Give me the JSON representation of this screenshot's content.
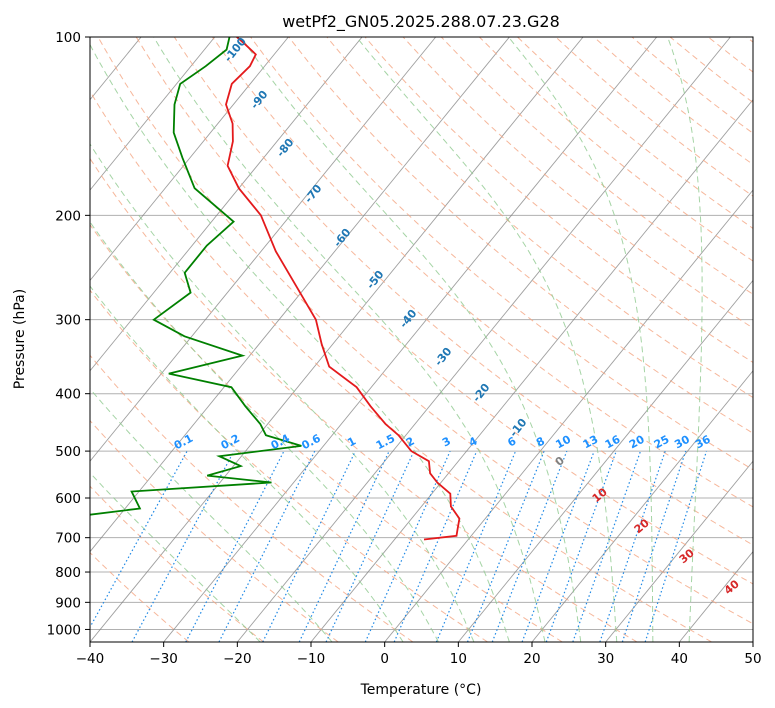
{
  "chart_data": {
    "type": "skew-t log-p diagram",
    "title": "wetPf2_GN05.2025.288.07.23.G28",
    "xlabel": "Temperature (°C)",
    "ylabel": "Pressure (hPa)",
    "xlim": [
      -40,
      50
    ],
    "ylim": [
      1050,
      100
    ],
    "y_scale": "log",
    "x_ticks": [
      -40,
      -30,
      -20,
      -10,
      0,
      10,
      20,
      30,
      40,
      50
    ],
    "x_tick_labels": [
      "−40",
      "−30",
      "−20",
      "−10",
      "0",
      "10",
      "20",
      "30",
      "40",
      "50"
    ],
    "y_ticks": [
      1000,
      900,
      800,
      700,
      600,
      500,
      400,
      300,
      200,
      100
    ],
    "y_tick_labels": [
      "1000",
      "900",
      "800",
      "700",
      "600",
      "500",
      "400",
      "300",
      "200",
      "100"
    ],
    "grid": true,
    "colors": {
      "temperature": "#e41a1c",
      "dewpoint": "#008000",
      "isotherm": "#808080",
      "dry_adiabat": "#f4a582",
      "moist_adiabat": "#8fc98f",
      "mixing_ratio": "#1e88e5",
      "isotherm_label": "#1f77b4",
      "dry_adiabat_label": "#d62728"
    },
    "isotherm_labels": [
      "-100",
      "-90",
      "-80",
      "-70",
      "-60",
      "-50",
      "-40",
      "-30",
      "-20",
      "-10"
    ],
    "mixing_ratio_labels": [
      "0.1",
      "0.2",
      "0.4",
      "0.6",
      "1",
      "1.5",
      "2",
      "3",
      "4",
      "6",
      "8",
      "10",
      "13",
      "16",
      "20",
      "25",
      "30",
      "36"
    ],
    "dry_adiabat_labels": [
      "0",
      "10",
      "20",
      "30",
      "40"
    ],
    "series": [
      {
        "name": "Temperature",
        "points": [
          [
            100,
            -87
          ],
          [
            103,
            -85
          ],
          [
            107,
            -82.5
          ],
          [
            112,
            -82
          ],
          [
            120,
            -82.5
          ],
          [
            130,
            -81
          ],
          [
            140,
            -78
          ],
          [
            150,
            -76
          ],
          [
            165,
            -74
          ],
          [
            180,
            -70
          ],
          [
            200,
            -64
          ],
          [
            230,
            -58
          ],
          [
            260,
            -52
          ],
          [
            300,
            -45
          ],
          [
            330,
            -41.5
          ],
          [
            360,
            -38
          ],
          [
            390,
            -32
          ],
          [
            420,
            -28
          ],
          [
            450,
            -24
          ],
          [
            470,
            -21
          ],
          [
            500,
            -17.5
          ],
          [
            520,
            -14
          ],
          [
            545,
            -12.5
          ],
          [
            565,
            -10.5
          ],
          [
            590,
            -7.5
          ],
          [
            620,
            -6
          ],
          [
            650,
            -3.5
          ],
          [
            680,
            -2.5
          ],
          [
            695,
            -2
          ],
          [
            705,
            -6
          ]
        ]
      },
      {
        "name": "Dewpoint",
        "points": [
          [
            100,
            -88
          ],
          [
            105,
            -87
          ],
          [
            112,
            -88
          ],
          [
            120,
            -89.5
          ],
          [
            130,
            -88
          ],
          [
            145,
            -85
          ],
          [
            160,
            -81
          ],
          [
            180,
            -76
          ],
          [
            205,
            -67
          ],
          [
            225,
            -68
          ],
          [
            250,
            -68
          ],
          [
            270,
            -65
          ],
          [
            300,
            -67
          ],
          [
            320,
            -61
          ],
          [
            345,
            -51
          ],
          [
            370,
            -59
          ],
          [
            390,
            -49
          ],
          [
            420,
            -45
          ],
          [
            450,
            -41
          ],
          [
            470,
            -39
          ],
          [
            490,
            -33
          ],
          [
            510,
            -43
          ],
          [
            530,
            -39
          ],
          [
            550,
            -42.5
          ],
          [
            565,
            -33
          ],
          [
            585,
            -51
          ],
          [
            625,
            -48
          ],
          [
            645,
            -56
          ],
          [
            660,
            -56
          ],
          [
            675,
            -56
          ],
          [
            685,
            -57
          ],
          [
            697,
            -62
          ],
          [
            700,
            -79
          ],
          [
            701,
            -61
          ]
        ]
      }
    ]
  }
}
